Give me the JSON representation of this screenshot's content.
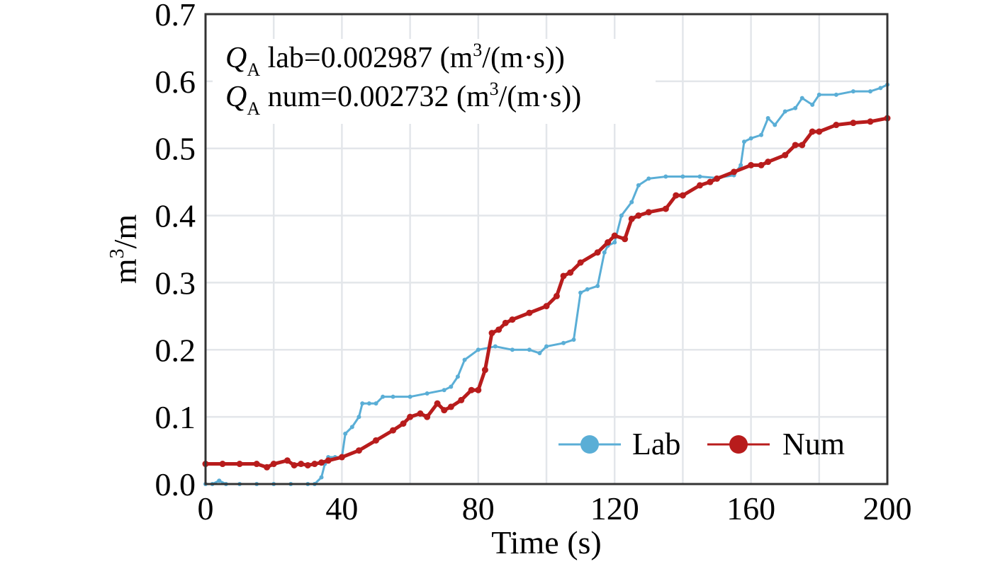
{
  "chart_data": {
    "type": "line",
    "title": "",
    "xlabel": "Time (s)",
    "ylabel": "m³/m",
    "ylabel_base": "m",
    "ylabel_sup": "3",
    "ylabel_tail": "/m",
    "xlim": [
      0,
      200
    ],
    "ylim": [
      0,
      0.7
    ],
    "x_ticks": [
      0,
      40,
      80,
      120,
      160,
      200
    ],
    "x_tick_labels": [
      "0",
      "40",
      "80",
      "120",
      "160",
      "200"
    ],
    "y_ticks": [
      0,
      0.1,
      0.2,
      0.3,
      0.4,
      0.5,
      0.6,
      0.7
    ],
    "y_tick_labels": [
      "0.0",
      "0.1",
      "0.2",
      "0.3",
      "0.4",
      "0.5",
      "0.6",
      "0.7"
    ],
    "grid": true,
    "legend_position": "bottom-right",
    "annotations": [
      {
        "q": "Q",
        "sub": "A",
        "text": " lab=0.002987 (m",
        "sup": "3",
        "tail": "/(m·s))"
      },
      {
        "q": "Q",
        "sub": "A",
        "text": " num=0.002732 (m",
        "sup": "3",
        "tail": "/(m·s))"
      }
    ],
    "series": [
      {
        "name": "Lab",
        "color": "#5aaed6",
        "x": [
          0,
          2,
          4,
          6,
          10,
          15,
          20,
          25,
          30,
          32,
          34,
          35,
          36,
          38,
          40,
          41,
          43,
          45,
          46,
          48,
          50,
          52,
          55,
          60,
          65,
          70,
          72,
          74,
          76,
          80,
          85,
          90,
          95,
          98,
          100,
          105,
          108,
          110,
          112,
          115,
          117,
          118,
          120,
          122,
          125,
          127,
          130,
          135,
          140,
          145,
          150,
          155,
          157,
          158,
          160,
          163,
          165,
          167,
          170,
          173,
          175,
          178,
          180,
          185,
          190,
          195,
          198,
          200
        ],
        "y": [
          0.0,
          0.0,
          0.005,
          0.0,
          0.0,
          0.0,
          0.0,
          0.0,
          0.0,
          0.0,
          0.01,
          0.03,
          0.04,
          0.04,
          0.04,
          0.075,
          0.085,
          0.1,
          0.12,
          0.12,
          0.12,
          0.13,
          0.13,
          0.13,
          0.135,
          0.14,
          0.145,
          0.16,
          0.185,
          0.2,
          0.205,
          0.2,
          0.2,
          0.195,
          0.205,
          0.21,
          0.215,
          0.285,
          0.29,
          0.295,
          0.345,
          0.355,
          0.36,
          0.4,
          0.42,
          0.445,
          0.455,
          0.458,
          0.458,
          0.458,
          0.456,
          0.46,
          0.475,
          0.51,
          0.515,
          0.52,
          0.545,
          0.535,
          0.555,
          0.56,
          0.575,
          0.565,
          0.58,
          0.58,
          0.585,
          0.585,
          0.59,
          0.595
        ]
      },
      {
        "name": "Num",
        "color": "#b81c1c",
        "x": [
          0,
          5,
          10,
          15,
          18,
          20,
          24,
          26,
          28,
          30,
          32,
          34,
          36,
          40,
          45,
          50,
          55,
          58,
          60,
          63,
          65,
          68,
          70,
          72,
          75,
          78,
          80,
          82,
          84,
          86,
          88,
          90,
          95,
          100,
          103,
          105,
          107,
          110,
          115,
          118,
          120,
          123,
          125,
          127,
          130,
          135,
          138,
          140,
          145,
          148,
          150,
          155,
          160,
          163,
          165,
          170,
          173,
          175,
          178,
          180,
          185,
          190,
          195,
          200
        ],
        "y": [
          0.03,
          0.03,
          0.03,
          0.03,
          0.025,
          0.03,
          0.035,
          0.028,
          0.03,
          0.028,
          0.03,
          0.032,
          0.035,
          0.04,
          0.05,
          0.065,
          0.08,
          0.09,
          0.1,
          0.105,
          0.1,
          0.12,
          0.11,
          0.115,
          0.125,
          0.14,
          0.14,
          0.17,
          0.225,
          0.23,
          0.24,
          0.245,
          0.255,
          0.265,
          0.28,
          0.31,
          0.315,
          0.33,
          0.345,
          0.36,
          0.37,
          0.365,
          0.395,
          0.4,
          0.405,
          0.41,
          0.43,
          0.43,
          0.445,
          0.45,
          0.455,
          0.465,
          0.475,
          0.475,
          0.48,
          0.49,
          0.505,
          0.505,
          0.525,
          0.525,
          0.535,
          0.538,
          0.54,
          0.545
        ]
      }
    ]
  }
}
